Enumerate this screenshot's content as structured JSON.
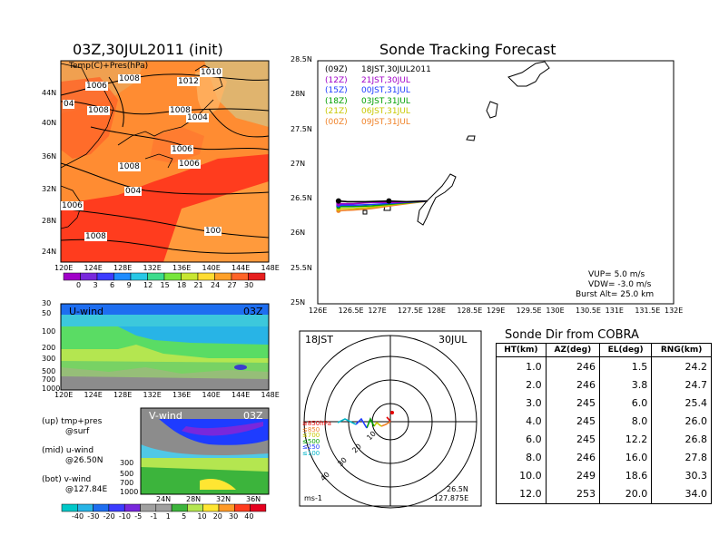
{
  "map_panel": {
    "title": "03Z,30JUL2011 (init)",
    "field_label": "Temp(C)+Pres(hPa)",
    "lat_labels": [
      "44N",
      "40N",
      "36N",
      "32N",
      "28N",
      "24N"
    ],
    "lon_labels": [
      "120E",
      "124E",
      "128E",
      "132E",
      "136E",
      "140E",
      "144E",
      "148E"
    ],
    "isobar_labels": [
      "1008",
      "1012",
      "1010",
      "1006",
      "1008",
      "04",
      "1008",
      "1004",
      "1006",
      "1006",
      "1008",
      "004",
      "1006",
      "1008",
      "100"
    ],
    "colorbar_ticks": [
      "0",
      "3",
      "6",
      "9",
      "12",
      "15",
      "18",
      "21",
      "24",
      "27",
      "30"
    ]
  },
  "u_panel": {
    "label": "U-wind",
    "time": "03Z",
    "p_labels": [
      "30",
      "50",
      "100",
      "200",
      "300",
      "500",
      "700",
      "1000"
    ],
    "lon_labels": [
      "120E",
      "124E",
      "128E",
      "132E",
      "136E",
      "140E",
      "144E",
      "148E"
    ]
  },
  "v_panel": {
    "label": "V-wind",
    "time": "03Z",
    "p_labels": [
      "300",
      "500",
      "700",
      "1000"
    ],
    "lat_labels": [
      "24N",
      "28N",
      "32N",
      "36N"
    ],
    "colorbar_ticks": [
      "-40",
      "-30",
      "-20",
      "-10",
      "-5",
      "-1",
      "1",
      "5",
      "10",
      "20",
      "30",
      "40"
    ]
  },
  "legend_notes": {
    "line1a": "(up) tmp+pres",
    "line1b": "@surf",
    "line2a": "(mid) u-wind",
    "line2b": "@26.50N",
    "line3a": "(bot) v-wind",
    "line3b": "@127.84E"
  },
  "track_panel": {
    "title": "Sonde Tracking Forecast",
    "legend": [
      {
        "code": "(09Z)",
        "label": "18JST,30JUL2011",
        "color": "#000000"
      },
      {
        "code": "(12Z)",
        "label": "21JST,30JUL",
        "color": "#a000c8"
      },
      {
        "code": "(15Z)",
        "label": "00JST,31JUL",
        "color": "#1e3cff"
      },
      {
        "code": "(18Z)",
        "label": "03JST,31JUL",
        "color": "#00a000"
      },
      {
        "code": "(21Z)",
        "label": "06JST,31JUL",
        "color": "#c8c800"
      },
      {
        "code": "(00Z)",
        "label": "09JST,31JUL",
        "color": "#f08228"
      }
    ],
    "info": {
      "vup": "VUP= 5.0 m/s",
      "vdw": "VDW= -3.0 m/s",
      "burst": "Burst Alt= 25.0 km"
    }
  },
  "polar_panel": {
    "time_label": "18JST",
    "date_label": "30JUL",
    "units": "ms-1",
    "lat": "26.5N",
    "lon": "127.875E",
    "ring_labels": [
      "10",
      "20",
      "30",
      "40"
    ],
    "level_legend": [
      {
        "text": "≥850hPa",
        "color": "#e60000"
      },
      {
        "text": "≤850",
        "color": "#f08228"
      },
      {
        "text": "≤700",
        "color": "#c8c800"
      },
      {
        "text": "≤500",
        "color": "#00a000"
      },
      {
        "text": "≤250",
        "color": "#1e3cff"
      },
      {
        "text": "≤100",
        "color": "#00b4c8"
      }
    ]
  },
  "direction_table": {
    "title": "Sonde Dir from COBRA",
    "headers": [
      "HT(km)",
      "AZ(deg)",
      "EL(deg)",
      "RNG(km)"
    ],
    "rows": [
      [
        "1.0",
        "246",
        "1.5",
        "24.2"
      ],
      [
        "2.0",
        "246",
        "3.8",
        "24.7"
      ],
      [
        "3.0",
        "245",
        "6.0",
        "25.4"
      ],
      [
        "4.0",
        "245",
        "8.0",
        "26.0"
      ],
      [
        "6.0",
        "245",
        "12.2",
        "26.8"
      ],
      [
        "8.0",
        "246",
        "16.0",
        "27.8"
      ],
      [
        "10.0",
        "249",
        "18.6",
        "30.3"
      ],
      [
        "12.0",
        "253",
        "20.0",
        "34.0"
      ]
    ]
  },
  "chart_data": {
    "type": "line",
    "title": "Sonde Tracking Forecast",
    "x_ticks": [
      "126E",
      "126.5E",
      "127E",
      "127.5E",
      "128E",
      "128.5E",
      "129E",
      "129.5E",
      "130E",
      "130.5E",
      "131E",
      "131.5E",
      "132E"
    ],
    "y_ticks": [
      "28.5N",
      "28N",
      "27.5N",
      "27N",
      "26.5N",
      "26N",
      "25.5N",
      "25N"
    ],
    "xlim": [
      126,
      132
    ],
    "ylim": [
      25,
      28.5
    ],
    "series": [
      {
        "name": "(09Z) 18JST,30JUL2011",
        "color": "#000000",
        "points": [
          [
            127.85,
            26.48
          ],
          [
            127.5,
            26.47
          ],
          [
            127.2,
            26.48
          ],
          [
            126.8,
            26.47
          ],
          [
            126.5,
            26.47
          ],
          [
            126.35,
            26.48
          ]
        ]
      },
      {
        "name": "(12Z) 21JST,30JUL",
        "color": "#a000c8",
        "points": [
          [
            127.85,
            26.48
          ],
          [
            127.3,
            26.46
          ],
          [
            126.9,
            26.46
          ],
          [
            126.6,
            26.44
          ],
          [
            126.35,
            26.44
          ]
        ]
      },
      {
        "name": "(15Z) 00JST,31JUL",
        "color": "#1e3cff",
        "points": [
          [
            127.85,
            26.48
          ],
          [
            127.3,
            26.45
          ],
          [
            126.9,
            26.43
          ],
          [
            126.6,
            26.42
          ],
          [
            126.35,
            26.42
          ]
        ]
      },
      {
        "name": "(18Z) 03JST,31JUL",
        "color": "#00a000",
        "points": [
          [
            127.85,
            26.48
          ],
          [
            127.3,
            26.44
          ],
          [
            126.9,
            26.41
          ],
          [
            126.6,
            26.4
          ],
          [
            126.35,
            26.4
          ]
        ]
      },
      {
        "name": "(21Z) 06JST,31JUL",
        "color": "#c8c800",
        "points": [
          [
            127.85,
            26.48
          ],
          [
            127.3,
            26.43
          ],
          [
            126.9,
            26.39
          ],
          [
            126.6,
            26.37
          ],
          [
            126.35,
            26.37
          ]
        ]
      },
      {
        "name": "(00Z) 09JST,31JUL",
        "color": "#f08228",
        "points": [
          [
            127.85,
            26.48
          ],
          [
            127.3,
            26.42
          ],
          [
            126.9,
            26.37
          ],
          [
            126.6,
            26.35
          ],
          [
            126.35,
            26.34
          ]
        ]
      }
    ],
    "markers": [
      [
        126.35,
        26.48
      ],
      [
        127.2,
        26.48
      ]
    ]
  }
}
